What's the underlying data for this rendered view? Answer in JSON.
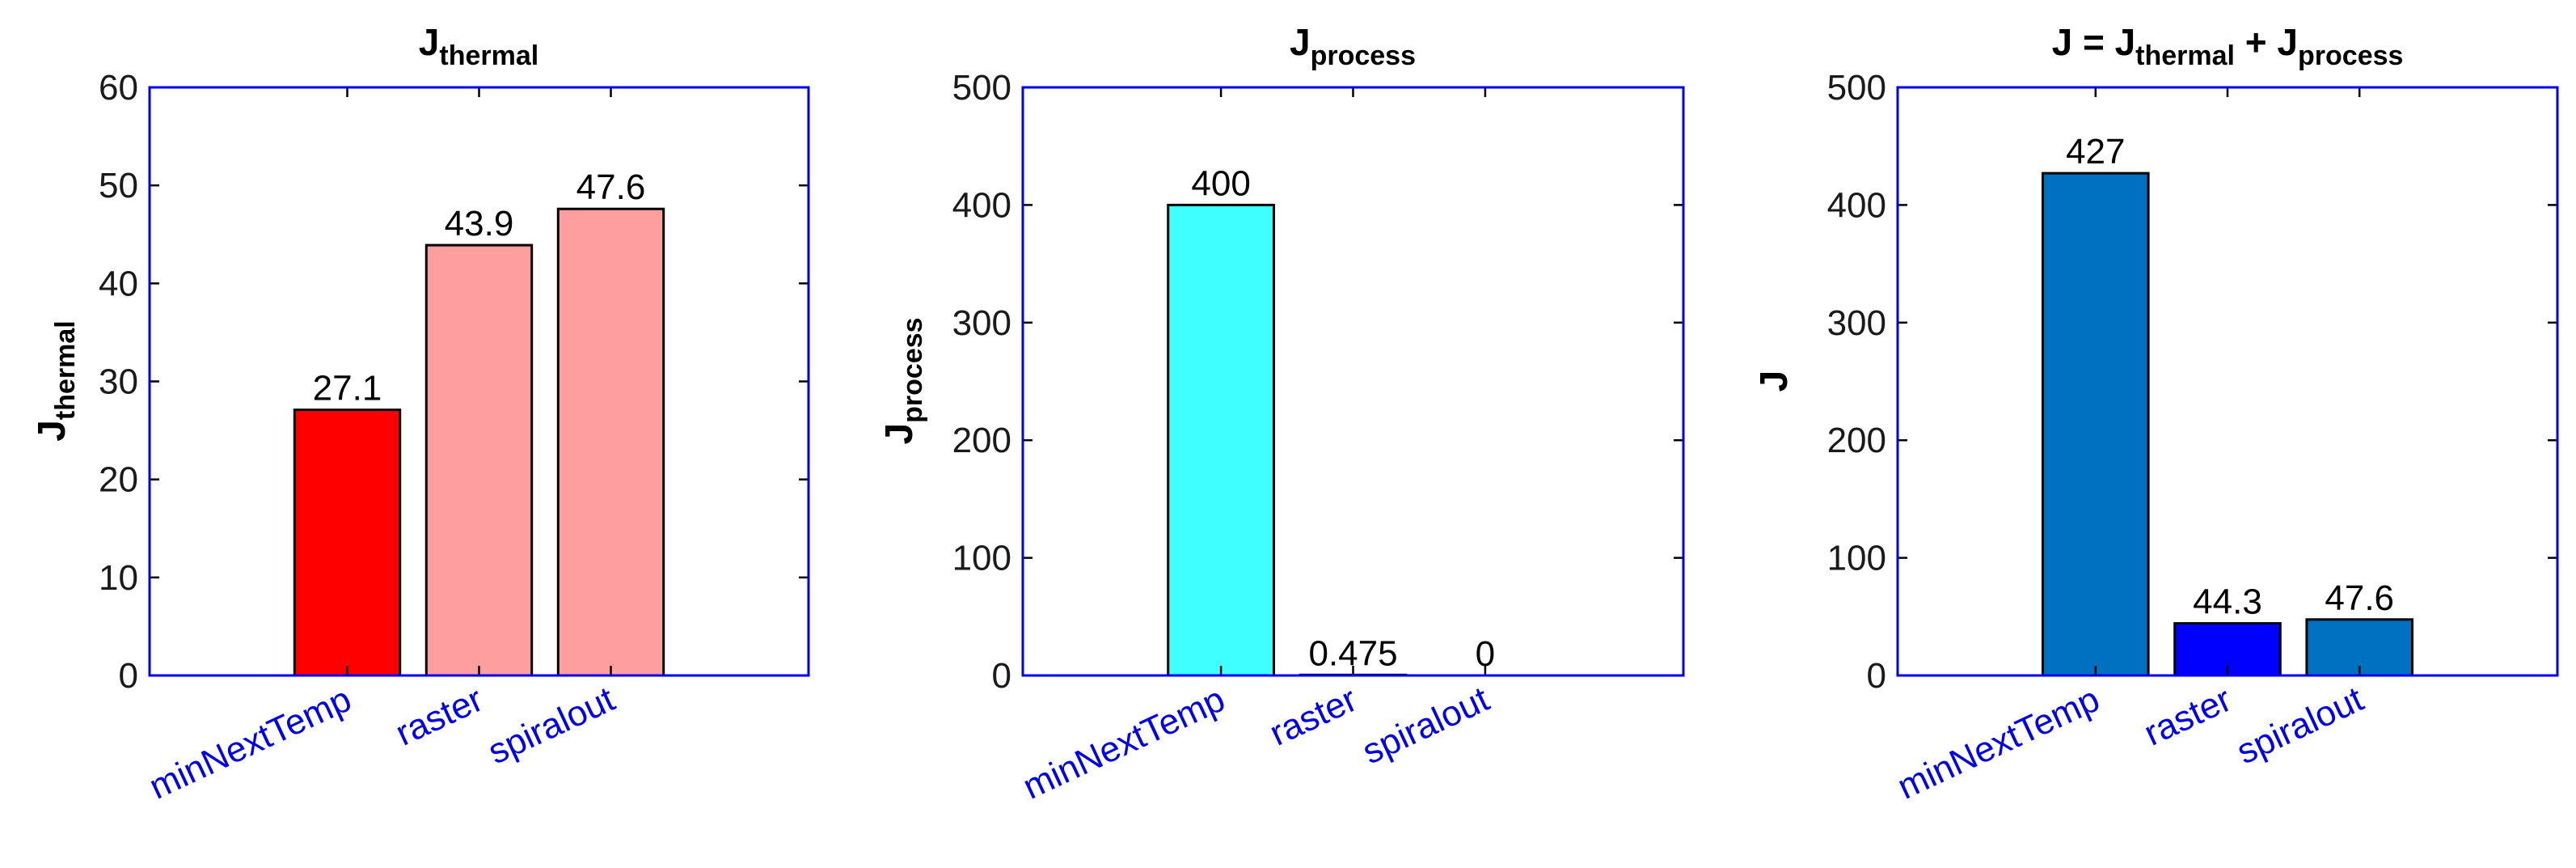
{
  "chart_data": [
    {
      "type": "bar",
      "title": {
        "base": "J",
        "sub": "thermal",
        "rest": []
      },
      "ylabel": {
        "base": "J",
        "sub": "thermal"
      },
      "xlabel": "",
      "ylim": [
        0,
        60
      ],
      "yticks": [
        0,
        10,
        20,
        30,
        40,
        50,
        60
      ],
      "categories": [
        "minNextTemp",
        "raster",
        "spiralout"
      ],
      "values": [
        27.1,
        43.9,
        47.6
      ],
      "value_labels": [
        "27.1",
        "43.9",
        "47.6"
      ],
      "colors": [
        "#ff0000",
        "#ff9e9e",
        "#ff9e9e"
      ],
      "grid": false
    },
    {
      "type": "bar",
      "title": {
        "base": "J",
        "sub": "process",
        "rest": []
      },
      "ylabel": {
        "base": "J",
        "sub": "process"
      },
      "xlabel": "",
      "ylim": [
        0,
        500
      ],
      "yticks": [
        0,
        100,
        200,
        300,
        400,
        500
      ],
      "categories": [
        "minNextTemp",
        "raster",
        "spiralout"
      ],
      "values": [
        400,
        0.475,
        0
      ],
      "value_labels": [
        "400",
        "0.475",
        "0"
      ],
      "colors": [
        "#40ffff",
        "#40ffff",
        "#40ffff"
      ],
      "grid": false
    },
    {
      "type": "bar",
      "title": {
        "base": "J = J",
        "sub": "thermal",
        "rest": [
          {
            "base": " + J",
            "sub": "process"
          }
        ]
      },
      "ylabel": {
        "base": "J",
        "sub": ""
      },
      "xlabel": "",
      "ylim": [
        0,
        500
      ],
      "yticks": [
        0,
        100,
        200,
        300,
        400,
        500
      ],
      "categories": [
        "minNextTemp",
        "raster",
        "spiralout"
      ],
      "values": [
        427,
        44.3,
        47.6
      ],
      "value_labels": [
        "427",
        "44.3",
        "47.6"
      ],
      "colors": [
        "#0070c0",
        "#0000ff",
        "#0070c0"
      ],
      "grid": false
    }
  ]
}
